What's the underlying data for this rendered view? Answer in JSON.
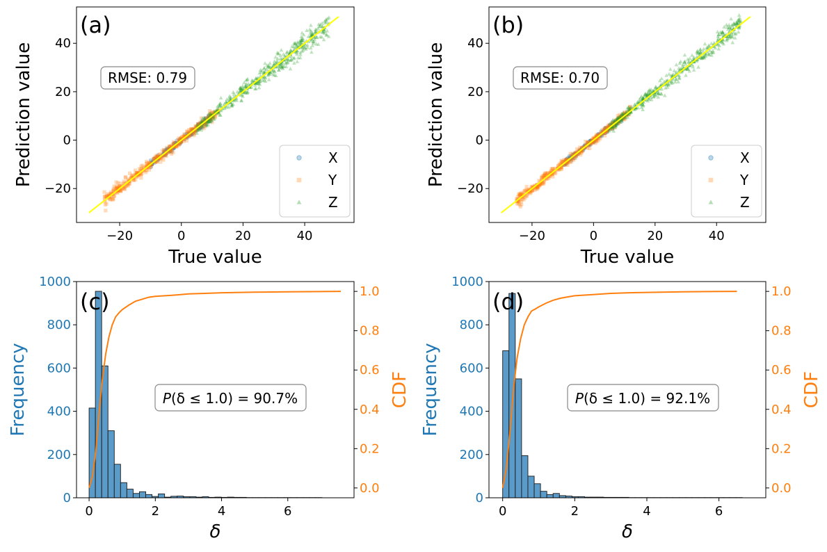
{
  "colors": {
    "x": "#1f77b4",
    "y": "#ff7f0e",
    "z": "#2ca02c",
    "fit_line": "#ffff00",
    "bar": "#5b9bc9",
    "cdf": "#ff7f0e",
    "freq_axis": "#1f77b4",
    "cdf_axis": "#ff7f0e"
  },
  "chart_data": [
    {
      "type": "scatter",
      "panel_label": "(a)",
      "xlabel": "True value",
      "ylabel": "Prediction value",
      "xlim": [
        -34,
        56
      ],
      "ylim": [
        -34,
        55
      ],
      "xticks": [
        -20,
        0,
        20,
        40
      ],
      "xtick_labels": [
        "−20",
        "0",
        "20",
        "40"
      ],
      "yticks": [
        -20,
        0,
        20,
        40
      ],
      "ytick_labels": [
        "−20",
        "0",
        "20",
        "40"
      ],
      "annotation": "RMSE: 0.79",
      "reference_line": [
        [
          -30,
          -30
        ],
        [
          51,
          51
        ]
      ],
      "legend": [
        "X",
        "Y",
        "Z"
      ],
      "legend_position": "lower-right",
      "series": [
        {
          "name": "X",
          "x_range": [
            -10,
            10
          ],
          "noise": 0.6
        },
        {
          "name": "Y",
          "x_range": [
            -25,
            12
          ],
          "noise": 0.8
        },
        {
          "name": "Z",
          "x_range": [
            5,
            48
          ],
          "noise": 1.1
        }
      ]
    },
    {
      "type": "scatter",
      "panel_label": "(b)",
      "xlabel": "True value",
      "ylabel": "Prediction value",
      "xlim": [
        -34,
        56
      ],
      "ylim": [
        -34,
        55
      ],
      "xticks": [
        -20,
        0,
        20,
        40
      ],
      "xtick_labels": [
        "−20",
        "0",
        "20",
        "40"
      ],
      "yticks": [
        -20,
        0,
        20,
        40
      ],
      "ytick_labels": [
        "−20",
        "0",
        "20",
        "40"
      ],
      "annotation": "RMSE: 0.70",
      "reference_line": [
        [
          -30,
          -30
        ],
        [
          51,
          51
        ]
      ],
      "legend": [
        "X",
        "Y",
        "Z"
      ],
      "legend_position": "lower-right",
      "series": [
        {
          "name": "X",
          "x_range": [
            -10,
            10
          ],
          "noise": 0.5
        },
        {
          "name": "Y",
          "x_range": [
            -25,
            12
          ],
          "noise": 0.7
        },
        {
          "name": "Z",
          "x_range": [
            5,
            48
          ],
          "noise": 1.0
        }
      ]
    },
    {
      "type": "bar",
      "panel_label": "(c)",
      "xlabel": "δ",
      "ylabel": "Frequency",
      "y2label": "CDF",
      "xlim": [
        -0.38,
        8.0
      ],
      "ylim": [
        0,
        1000
      ],
      "y2lim": [
        -0.05,
        1.05
      ],
      "xticks": [
        0,
        2,
        4,
        6
      ],
      "xtick_labels": [
        "0",
        "2",
        "4",
        "6"
      ],
      "yticks": [
        0,
        200,
        400,
        600,
        800,
        1000
      ],
      "ytick_labels": [
        "0",
        "200",
        "400",
        "600",
        "800",
        "1000"
      ],
      "y2ticks": [
        0,
        0.2,
        0.4,
        0.6,
        0.8,
        1.0
      ],
      "y2tick_labels": [
        "0.0",
        "0.2",
        "0.4",
        "0.6",
        "0.8",
        "1.0"
      ],
      "annotation": {
        "prefix": "P",
        "arg": "(δ ≤ 1.0)",
        "suffix": " = 90.7%"
      },
      "bin_start": 0,
      "bin_width": 0.19,
      "values": [
        415,
        955,
        610,
        310,
        155,
        70,
        40,
        20,
        28,
        15,
        6,
        18,
        3,
        7,
        8,
        5,
        5,
        3,
        5,
        2,
        3,
        2,
        3,
        2,
        2,
        1,
        1,
        1,
        1,
        1,
        1,
        1,
        1,
        1,
        1,
        1,
        1
      ],
      "cdf_x": [
        0,
        0.1,
        0.2,
        0.3,
        0.4,
        0.5,
        0.6,
        0.7,
        0.8,
        0.9,
        1.0,
        1.2,
        1.4,
        1.6,
        1.8,
        2.0,
        2.5,
        3.0,
        3.5,
        4.0,
        5.0,
        6.0,
        7.6
      ],
      "cdf_y": [
        0.0,
        0.06,
        0.18,
        0.38,
        0.55,
        0.68,
        0.77,
        0.83,
        0.87,
        0.89,
        0.907,
        0.93,
        0.95,
        0.96,
        0.97,
        0.975,
        0.98,
        0.987,
        0.99,
        0.993,
        0.996,
        0.998,
        1.0
      ]
    },
    {
      "type": "bar",
      "panel_label": "(d)",
      "xlabel": "δ",
      "ylabel": "Frequency",
      "y2label": "CDF",
      "xlim": [
        -0.38,
        7.3
      ],
      "ylim": [
        0,
        1000
      ],
      "y2lim": [
        -0.05,
        1.05
      ],
      "xticks": [
        0,
        2,
        4,
        6
      ],
      "xtick_labels": [
        "0",
        "2",
        "4",
        "6"
      ],
      "yticks": [
        0,
        200,
        400,
        600,
        800,
        1000
      ],
      "ytick_labels": [
        "0",
        "200",
        "400",
        "600",
        "800",
        "1000"
      ],
      "y2ticks": [
        0,
        0.2,
        0.4,
        0.6,
        0.8,
        1.0
      ],
      "y2tick_labels": [
        "0.0",
        "0.2",
        "0.4",
        "0.6",
        "0.8",
        "1.0"
      ],
      "annotation": {
        "prefix": "P",
        "arg": "(δ ≤ 1.0)",
        "suffix": " = 92.1%"
      },
      "bin_start": 0,
      "bin_width": 0.175,
      "values": [
        680,
        945,
        550,
        195,
        100,
        65,
        30,
        15,
        20,
        10,
        8,
        5,
        5,
        3,
        3,
        3,
        2,
        2,
        2,
        2,
        1,
        1,
        1,
        1,
        1,
        1,
        1,
        1,
        1,
        1,
        1,
        1,
        1,
        1,
        1,
        1,
        1,
        1
      ],
      "cdf_x": [
        0,
        0.1,
        0.2,
        0.3,
        0.4,
        0.5,
        0.6,
        0.7,
        0.8,
        0.9,
        1.0,
        1.2,
        1.4,
        1.6,
        1.8,
        2.0,
        2.5,
        3.0,
        3.5,
        4.0,
        5.0,
        6.5
      ],
      "cdf_y": [
        0.0,
        0.1,
        0.28,
        0.5,
        0.66,
        0.76,
        0.83,
        0.87,
        0.9,
        0.91,
        0.921,
        0.94,
        0.955,
        0.965,
        0.972,
        0.978,
        0.984,
        0.99,
        0.993,
        0.995,
        0.998,
        1.0
      ]
    }
  ]
}
